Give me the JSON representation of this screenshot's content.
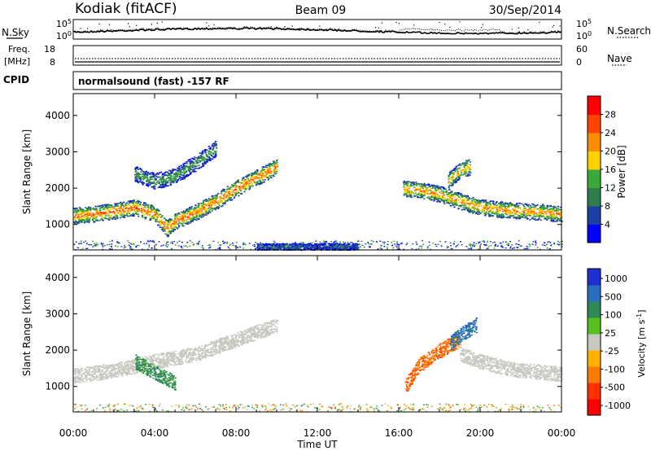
{
  "header": {
    "station": "Kodiak (fitACF)",
    "beam": "Beam 09",
    "date": "30/Sep/2014"
  },
  "noise_panel": {
    "left_label": "N.Sky",
    "right_label": "N.Search",
    "left_ticks": [
      "10^5",
      "10^0"
    ],
    "right_ticks": [
      "10^5",
      "10^0"
    ]
  },
  "freq_panel": {
    "left_label": "Freq.",
    "left_unit": "[MHz]",
    "right_label": "Nave",
    "left_ticks": [
      "18",
      "8"
    ],
    "right_ticks": [
      "60",
      "0"
    ]
  },
  "cpid": {
    "label": "CPID",
    "program": "normalsound (fast) -157 RF"
  },
  "colors": {
    "power_scale": [
      "#0000ff",
      "#1f3fa8",
      "#2e7d4f",
      "#3aa83a",
      "#ffd000",
      "#ff8c00",
      "#ff4500",
      "#ff0000"
    ],
    "velocity_scale": [
      "#1f2fd0",
      "#2a6ec0",
      "#2e8b57",
      "#55c020",
      "#c8c8c0",
      "#ffb000",
      "#ff7a00",
      "#ff3000",
      "#ff0000"
    ],
    "ground_scatter": "#c8c8c0"
  },
  "chart_data": [
    {
      "type": "heatmap",
      "quantity": "Power",
      "ylabel": "Slant Range [km]",
      "yticks": [
        "1000",
        "2000",
        "3000",
        "4000"
      ],
      "ylim": [
        300,
        4600
      ],
      "xlim": [
        0,
        24
      ],
      "colorbar": {
        "label": "Power [dB]",
        "ticks": [
          "4",
          "8",
          "12",
          "16",
          "20",
          "24",
          "28"
        ],
        "range": [
          0,
          30
        ]
      },
      "structures": [
        {
          "region": "main band, pre-midnight",
          "t": [
            0,
            1,
            2,
            3,
            4,
            4.6,
            5,
            6,
            7,
            8,
            9,
            10
          ],
          "range_km": [
            1250,
            1300,
            1380,
            1480,
            1300,
            900,
            1100,
            1350,
            1650,
            2000,
            2300,
            2600
          ],
          "power_db": 24
        },
        {
          "region": "upper band",
          "t": [
            3,
            4,
            5,
            6,
            7
          ],
          "range_km": [
            2400,
            2200,
            2350,
            2700,
            3100
          ],
          "power_db": 12
        },
        {
          "region": "main band, post-16UT",
          "t": [
            16.2,
            17,
            18,
            19,
            20,
            21,
            22,
            23,
            24
          ],
          "range_km": [
            2000,
            1950,
            1850,
            1650,
            1480,
            1420,
            1380,
            1350,
            1300
          ],
          "power_db": 22
        },
        {
          "region": "arc near 19 UT",
          "t": [
            18.4,
            19,
            19.5
          ],
          "range_km": [
            2200,
            2500,
            2600
          ],
          "power_db": 20
        },
        {
          "region": "near range echoes",
          "t": [
            9,
            14
          ],
          "range_km": [
            400,
            400
          ],
          "power_db": 8
        }
      ]
    },
    {
      "type": "heatmap",
      "quantity": "Velocity",
      "ylabel": "Slant Range [km]",
      "yticks": [
        "1000",
        "2000",
        "3000",
        "4000"
      ],
      "ylim": [
        300,
        4600
      ],
      "xlim": [
        0,
        24
      ],
      "xlabel": "Time UT",
      "xticks": [
        "00:00",
        "04:00",
        "08:00",
        "12:00",
        "16:00",
        "20:00",
        "00:00"
      ],
      "colorbar": {
        "label": "Velocity [m s^-1]",
        "ticks": [
          "1000",
          "500",
          "100",
          "25",
          "-25",
          "-100",
          "-500",
          "-1000"
        ]
      },
      "structures": [
        {
          "region": "ground scatter, pre-midnight",
          "t": [
            0,
            2,
            4,
            6,
            8,
            10
          ],
          "range_km": [
            1300,
            1450,
            1700,
            1900,
            2300,
            2700
          ],
          "velocity": 0
        },
        {
          "region": "ionospheric echoes 03-05 UT",
          "t": [
            3,
            4,
            5
          ],
          "range_km": [
            1700,
            1400,
            1100
          ],
          "velocity": 150
        },
        {
          "region": "ground scatter, post-19UT",
          "t": [
            19,
            20,
            21,
            22,
            23,
            24
          ],
          "range_km": [
            1900,
            1700,
            1550,
            1450,
            1400,
            1350
          ],
          "velocity": 0
        },
        {
          "region": "receding echoes near 17 UT",
          "t": [
            16.3,
            17,
            18,
            19
          ],
          "range_km": [
            1000,
            1600,
            2000,
            2300
          ],
          "velocity": -400
        },
        {
          "region": "approaching arc near 19.5 UT",
          "t": [
            18.5,
            19.2,
            19.8
          ],
          "range_km": [
            2200,
            2500,
            2700
          ],
          "velocity": 700
        }
      ]
    }
  ]
}
